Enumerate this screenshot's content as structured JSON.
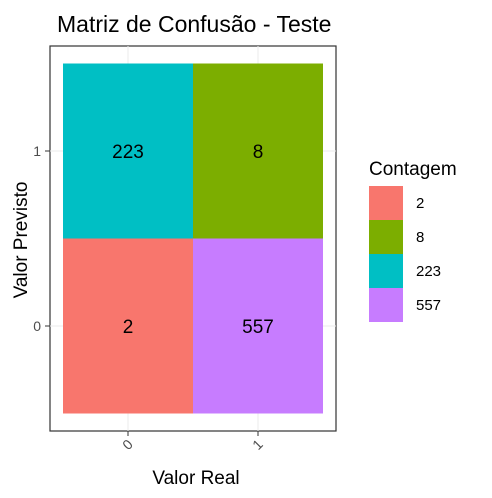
{
  "chart_data": {
    "type": "heatmap",
    "title": "Matriz de Confusão - Teste",
    "xlabel": "Valor Real",
    "ylabel": "Valor Previsto",
    "x_categories": [
      "0",
      "1"
    ],
    "y_categories": [
      "0",
      "1"
    ],
    "cells": [
      {
        "x": "0",
        "y": "1",
        "value": 223,
        "label": "223"
      },
      {
        "x": "1",
        "y": "1",
        "value": 8,
        "label": "8"
      },
      {
        "x": "0",
        "y": "0",
        "value": 2,
        "label": "2"
      },
      {
        "x": "1",
        "y": "0",
        "value": 557,
        "label": "557"
      }
    ],
    "legend": {
      "title": "Contagem",
      "placement": "right",
      "entries": [
        {
          "label": "2",
          "value": 2,
          "color": "#F8766D"
        },
        {
          "label": "8",
          "value": 8,
          "color": "#7CAE00"
        },
        {
          "label": "223",
          "value": 223,
          "color": "#00BFC4"
        },
        {
          "label": "557",
          "value": 557,
          "color": "#C77CFF"
        }
      ]
    },
    "grid": true,
    "x_tick_rotation": -45
  }
}
